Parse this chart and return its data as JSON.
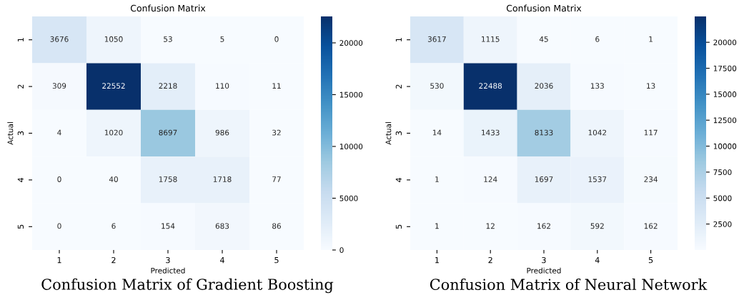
{
  "chart_data": [
    {
      "type": "heatmap",
      "title": "Confusion Matrix",
      "xlabel": "Predicted",
      "ylabel": "Actual",
      "categories": [
        "1",
        "2",
        "3",
        "4",
        "5"
      ],
      "y_categories": [
        "1",
        "2",
        "3",
        "4",
        "5"
      ],
      "cells": [
        [
          3676,
          1050,
          53,
          5,
          0
        ],
        [
          309,
          22552,
          2218,
          110,
          11
        ],
        [
          4,
          1020,
          8697,
          986,
          32
        ],
        [
          0,
          40,
          1758,
          1718,
          77
        ],
        [
          0,
          6,
          154,
          683,
          86
        ]
      ],
      "clim": [
        0,
        22552
      ],
      "cticks": [
        0,
        5000,
        10000,
        15000,
        20000
      ],
      "data_labels": true,
      "annotations": [
        "Confusion Matrix of Gradient Boosting"
      ]
    },
    {
      "type": "heatmap",
      "title": "Confusion Matrix",
      "xlabel": "Predicted",
      "ylabel": "Actual",
      "categories": [
        "1",
        "2",
        "3",
        "4",
        "5"
      ],
      "y_categories": [
        "1",
        "2",
        "3",
        "4",
        "5"
      ],
      "cells": [
        [
          3617,
          1115,
          45,
          6,
          1
        ],
        [
          530,
          22488,
          2036,
          133,
          13
        ],
        [
          14,
          1433,
          8133,
          1042,
          117
        ],
        [
          1,
          124,
          1697,
          1537,
          234
        ],
        [
          1,
          12,
          162,
          592,
          162
        ]
      ],
      "clim": [
        1,
        22488
      ],
      "cticks": [
        2500,
        5000,
        7500,
        10000,
        12500,
        15000,
        17500,
        20000
      ],
      "data_labels": true,
      "annotations": [
        "Confusion Matrix of Neural Network"
      ]
    }
  ]
}
